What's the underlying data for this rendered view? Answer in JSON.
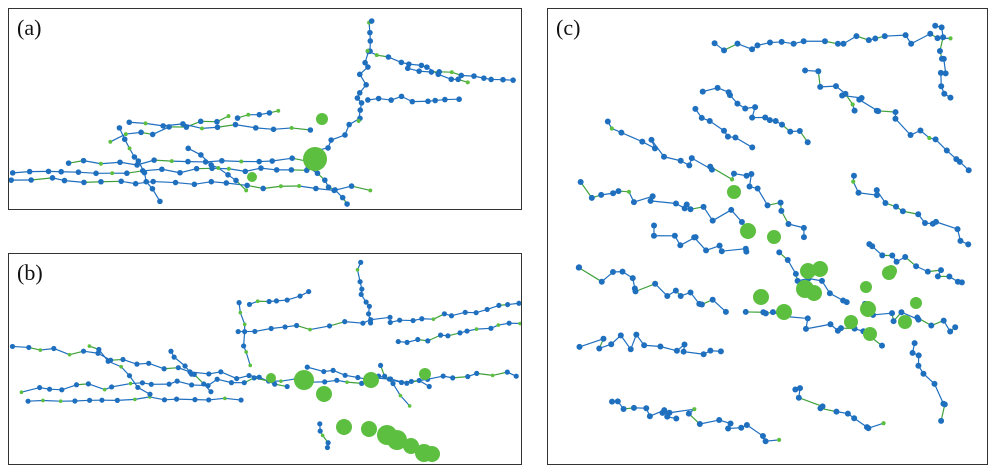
{
  "panels": [
    {
      "label": "(a)"
    },
    {
      "label": "(b)"
    },
    {
      "label": "(c)"
    }
  ],
  "colors": {
    "node": "#1f6fbf",
    "highlight": "#5cbf3f",
    "edge_blue": "#1f6fbf",
    "edge_green": "#3fa03a",
    "border": "#333333"
  }
}
